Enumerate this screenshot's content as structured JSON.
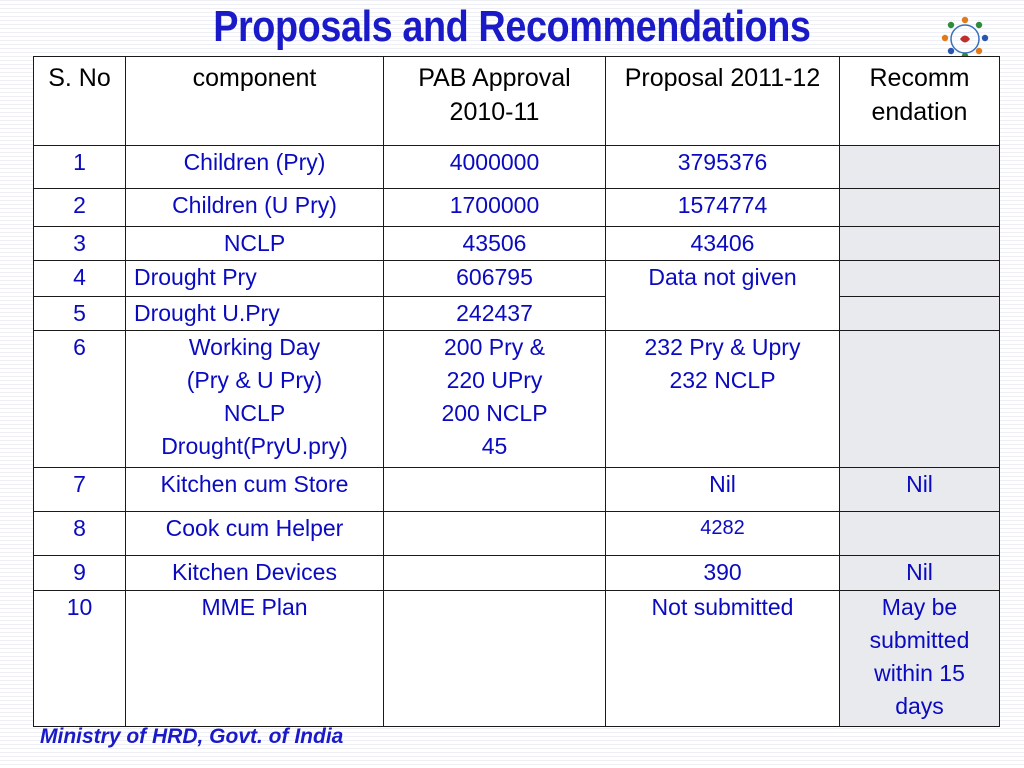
{
  "title": "Proposals and Recommendations",
  "footer": "Ministry of HRD, Govt. of India",
  "table": {
    "headers": {
      "sno": "S.\nNo",
      "component": "component",
      "pab": "PAB Approval\n2010-11",
      "proposal": "Proposal\n2011-12",
      "recommendation": "Recomm\nendation"
    },
    "rows": [
      {
        "sno": "1",
        "component": "Children (Pry)",
        "pab": "4000000",
        "proposal": "3795376",
        "recommendation": ""
      },
      {
        "sno": "2",
        "component": "Children (U Pry)",
        "pab": "1700000",
        "proposal": "1574774",
        "recommendation": ""
      },
      {
        "sno": "3",
        "component": "NCLP",
        "pab": "43506",
        "proposal": "43406",
        "recommendation": ""
      },
      {
        "sno": "4",
        "component": "Drought Pry",
        "pab": "606795",
        "proposal": "Data not given",
        "recommendation": ""
      },
      {
        "sno": "5",
        "component": "Drought U.Pry",
        "pab": "242437",
        "recommendation": ""
      },
      {
        "sno": "6",
        "component": "Working Day\n(Pry & U Pry)\nNCLP\nDrought(PryU.pry)",
        "pab": "200 Pry &\n220 UPry\n200 NCLP\n45",
        "proposal": "232 Pry & Upry\n232 NCLP",
        "recommendation": ""
      },
      {
        "sno": "7",
        "component": "Kitchen cum Store",
        "pab": "",
        "proposal": "Nil",
        "recommendation": "Nil"
      },
      {
        "sno": "8",
        "component": "Cook cum Helper",
        "pab": "",
        "proposal": "4282",
        "recommendation": ""
      },
      {
        "sno": "9",
        "component": "Kitchen Devices",
        "pab": "",
        "proposal": "390",
        "recommendation": "Nil"
      },
      {
        "sno": "10",
        "component": "MME Plan",
        "pab": "",
        "proposal": "Not submitted",
        "recommendation": "May be\nsubmitted\nwithin 15\ndays"
      }
    ]
  },
  "colors": {
    "title": "#1a1ac8",
    "cell_text": "#0a0ac0",
    "shade": "#e8eaee"
  },
  "logo": {
    "icon": "people-circle-logo"
  }
}
